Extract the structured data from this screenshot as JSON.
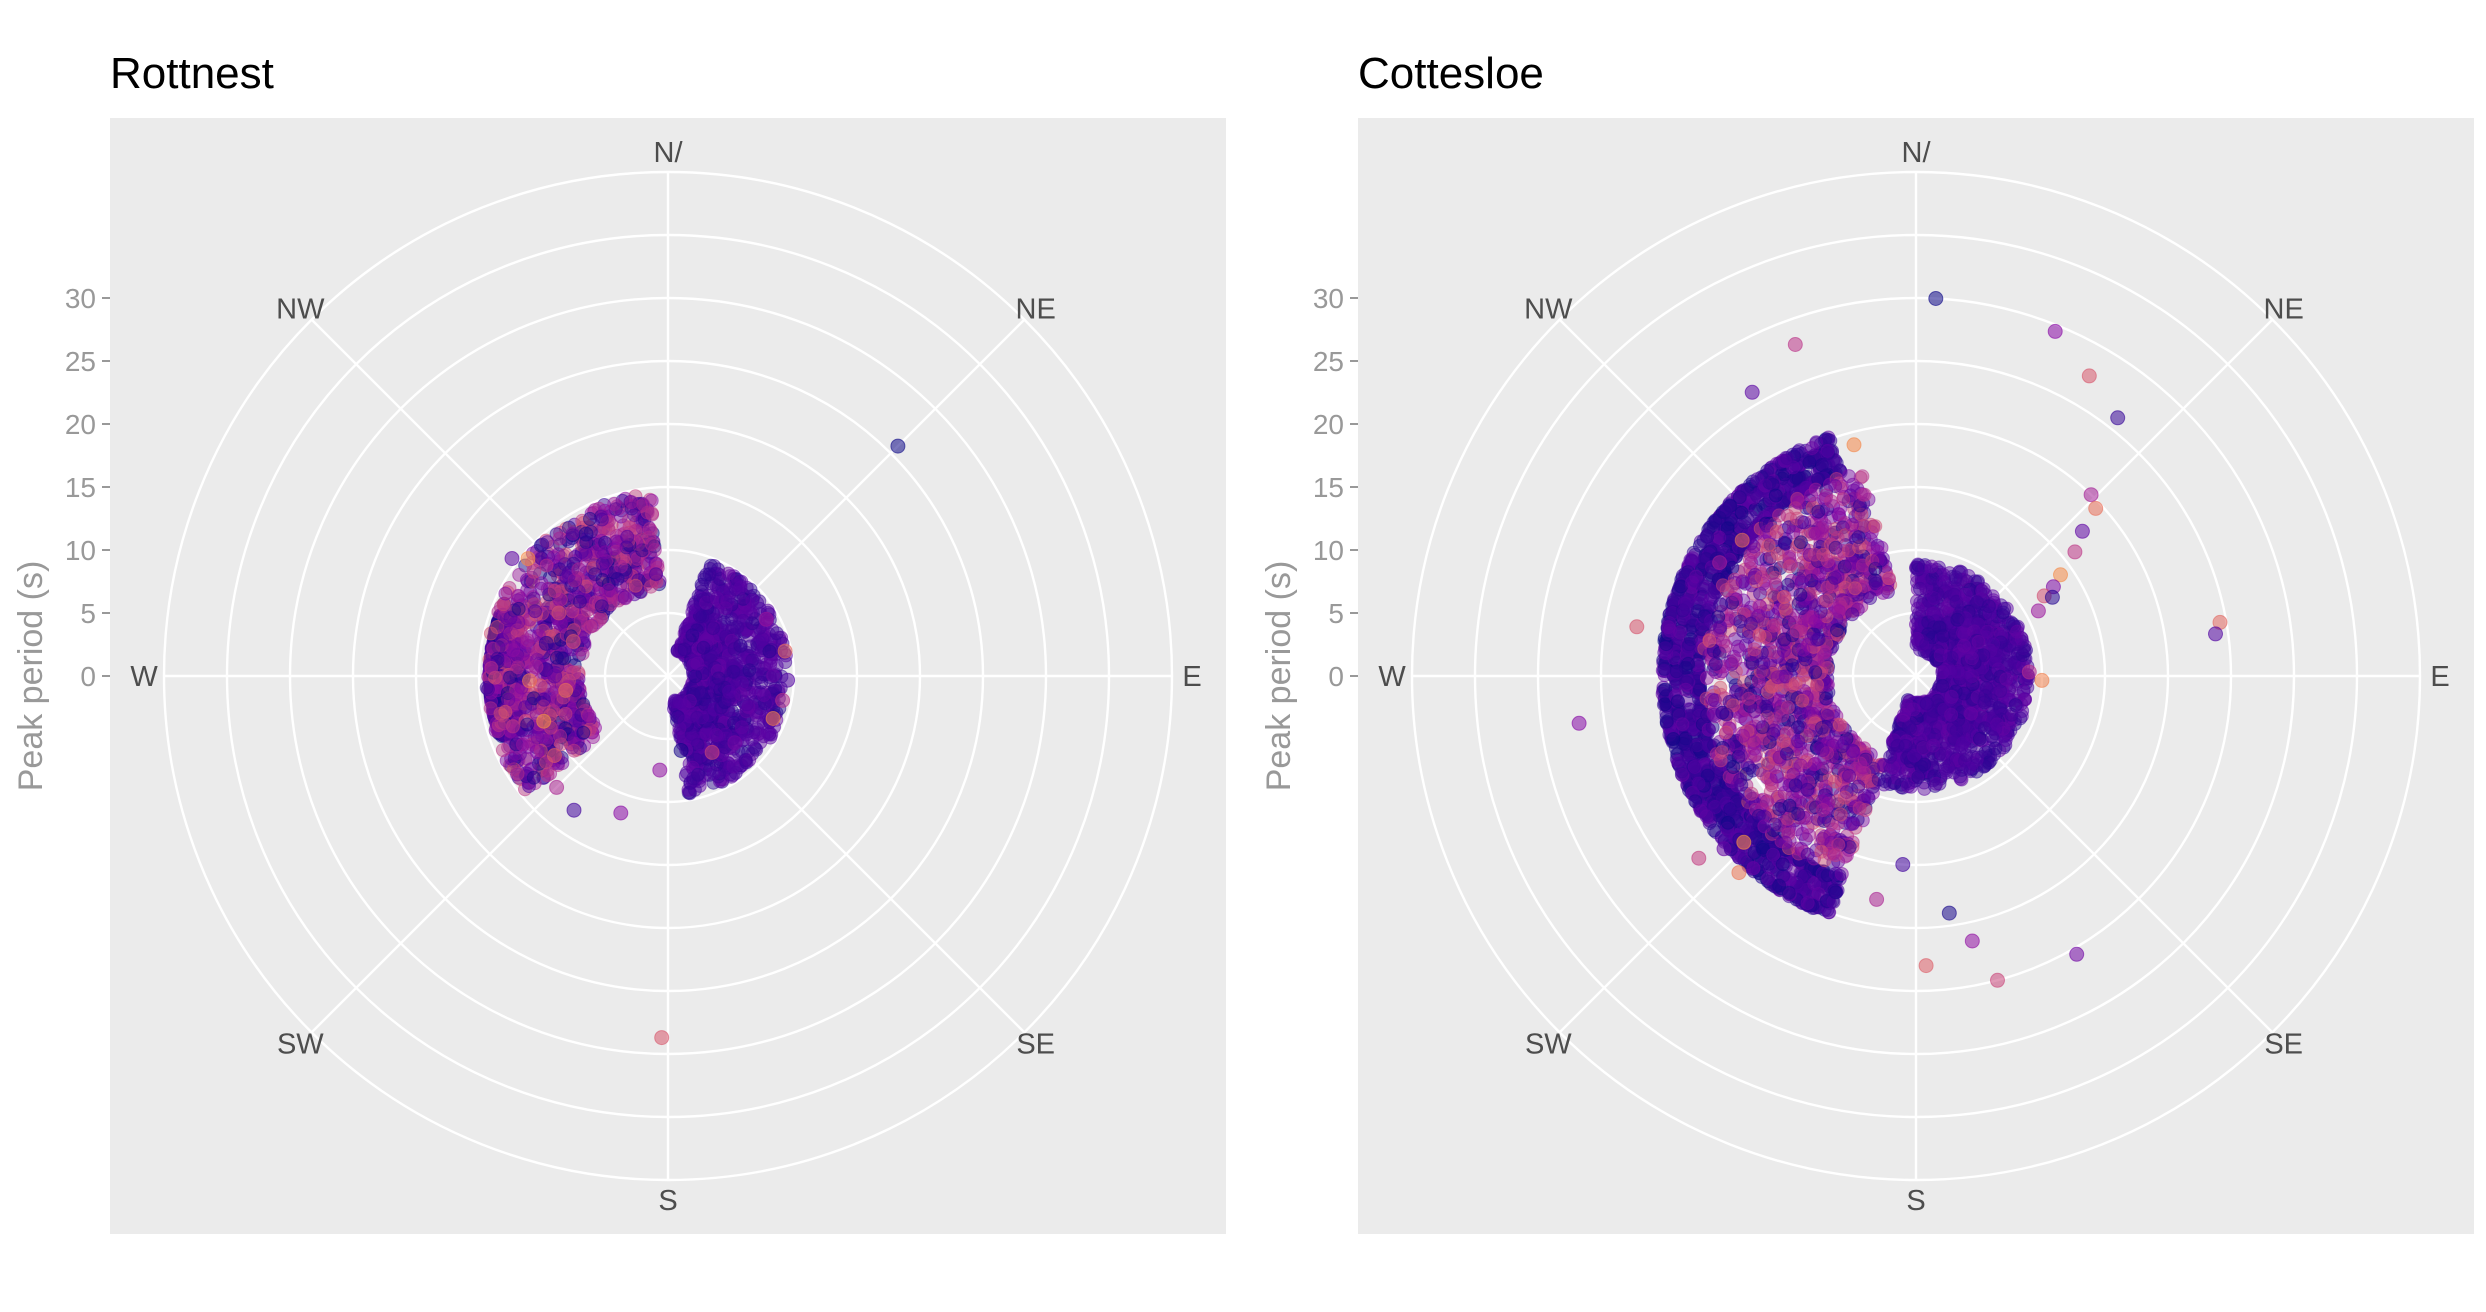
{
  "chart_data": [
    {
      "type": "scatter",
      "coordinate_system": "polar",
      "title": "Rottnest",
      "ylabel": "Peak period (s)",
      "direction_labels": [
        "N/",
        "NE",
        "E",
        "SE",
        "S",
        "SW",
        "W",
        "NW"
      ],
      "radial_ticks": [
        0,
        5,
        10,
        15,
        20,
        25,
        30
      ],
      "radial_range": [
        -5,
        35
      ],
      "grid": true,
      "palette": "plasma",
      "series": [
        {
          "points_dir_deg": [
            45,
            199,
            181,
            273,
            274,
            262,
            307,
            308,
            310,
            296,
            300,
            330,
            60,
            78,
            92,
            102,
            112,
            135,
            150,
            170,
            185,
            235,
            215,
            225,
            268,
            270,
            272,
            250,
            240,
            290,
            285,
            320
          ],
          "points_period_s": [
            20.8,
            6.5,
            23.7,
            4.7,
            5.5,
            3.2,
            10.5,
            8.5,
            9.5,
            4.5,
            5.0,
            8.0,
            4.0,
            4.5,
            4.5,
            4.3,
            4.0,
            2.5,
            2.0,
            1.0,
            2.5,
            6.0,
            8.0,
            7.5,
            6.0,
            4.0,
            2.5,
            5.5,
            7.0,
            3.0,
            5.0,
            6.0
          ]
        }
      ],
      "point_clouds": [
        {
          "dir_range_deg": [
            250,
            290
          ],
          "period_range_s": [
            7.5,
            9.0
          ],
          "description_hint": "concentric bands"
        },
        {
          "dir_range_deg": [
            230,
            355
          ],
          "period_range_s": [
            2,
            9.5
          ]
        },
        {
          "dir_range_deg": [
            20,
            170
          ],
          "period_range_s": [
            -3,
            4.5
          ]
        }
      ]
    },
    {
      "type": "scatter",
      "coordinate_system": "polar",
      "title": "Cottesloe",
      "ylabel": "Peak period (s)",
      "direction_labels": [
        "N/",
        "NE",
        "E",
        "SE",
        "S",
        "SW",
        "W",
        "NW"
      ],
      "radial_ticks": [
        0,
        5,
        10,
        15,
        20,
        25,
        30
      ],
      "radial_range": [
        -5,
        35
      ],
      "grid": true,
      "palette": "plasma",
      "series": [
        {
          "points_dir_deg": [
            3,
            22,
            30,
            38,
            44,
            47,
            49,
            52,
            55,
            57,
            58,
            60,
            62,
            80,
            82,
            88,
            92,
            150,
            165,
            172,
            168,
            178,
            184,
            190,
            222,
            228,
            230,
            226,
            262,
            280,
            290,
            300,
            308,
            330,
            340,
            345
          ],
          "points_period_s": [
            25.0,
            24.5,
            22.5,
            21.0,
            15.0,
            14.5,
            12.5,
            11.0,
            9.0,
            8.0,
            7.0,
            7.5,
            6.0,
            19.5,
            19.0,
            4.0,
            5.0,
            20.5,
            20.0,
            14.0,
            16.5,
            18.0,
            10.0,
            13.0,
            16.0,
            15.5,
            17.5,
            14.0,
            22.0,
            17.5,
            11.5,
            13.0,
            12.5,
            21.0,
            23.0,
            14.0
          ]
        }
      ],
      "point_clouds": [
        {
          "dir_range_deg": [
            200,
            340
          ],
          "period_range_s": [
            12,
            15
          ],
          "description_hint": "concentric bands"
        },
        {
          "dir_range_deg": [
            200,
            345
          ],
          "period_range_s": [
            2,
            12
          ]
        },
        {
          "dir_range_deg": [
            0,
            200
          ],
          "period_range_s": [
            -3,
            4
          ]
        }
      ]
    }
  ]
}
